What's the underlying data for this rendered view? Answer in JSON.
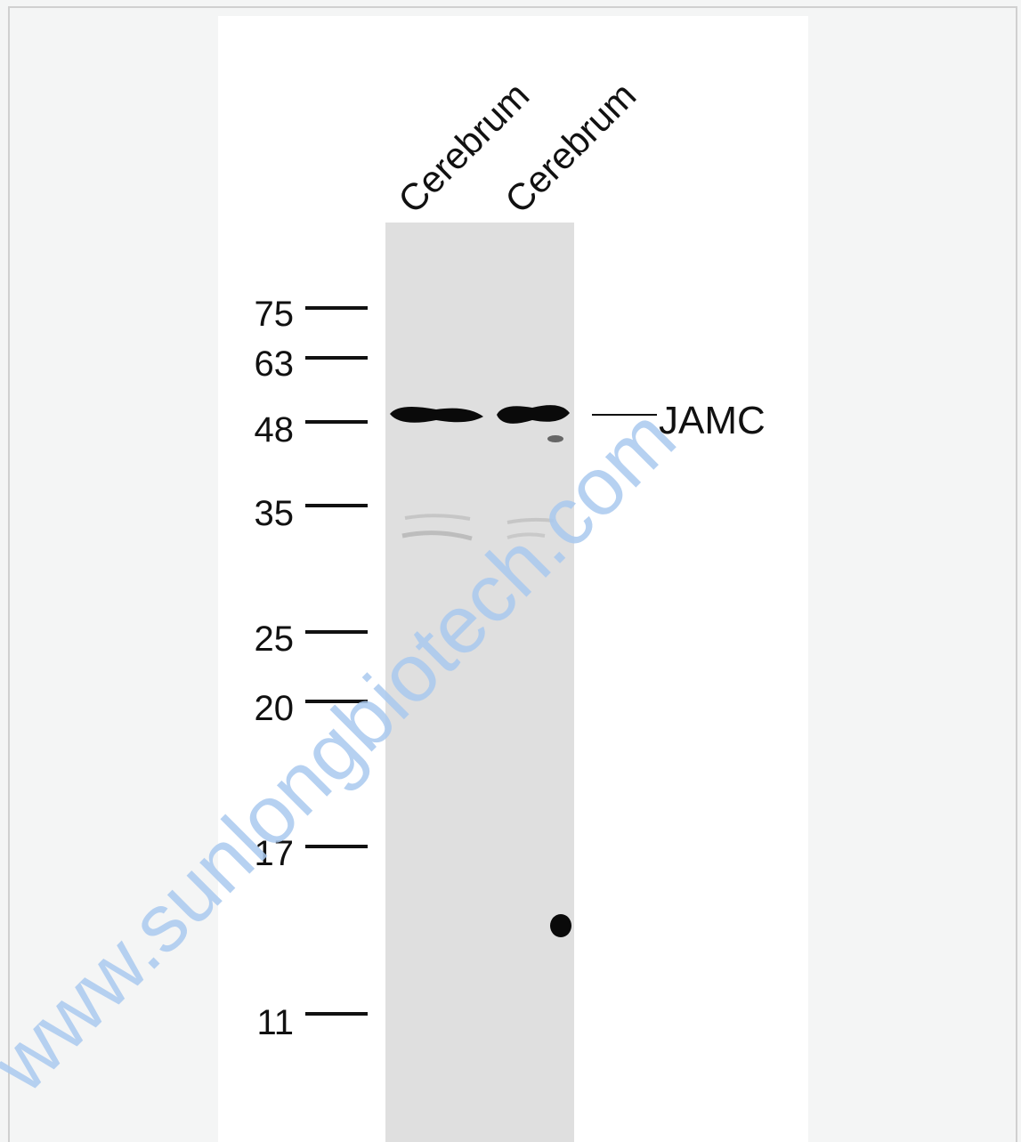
{
  "lanes": [
    "Cerebrum",
    "Cerebrum"
  ],
  "markers": [
    "75",
    "63",
    "48",
    "35",
    "25",
    "20",
    "17",
    "11"
  ],
  "band_label": "JAMC",
  "watermark": "www.sunlongbiotech.com"
}
